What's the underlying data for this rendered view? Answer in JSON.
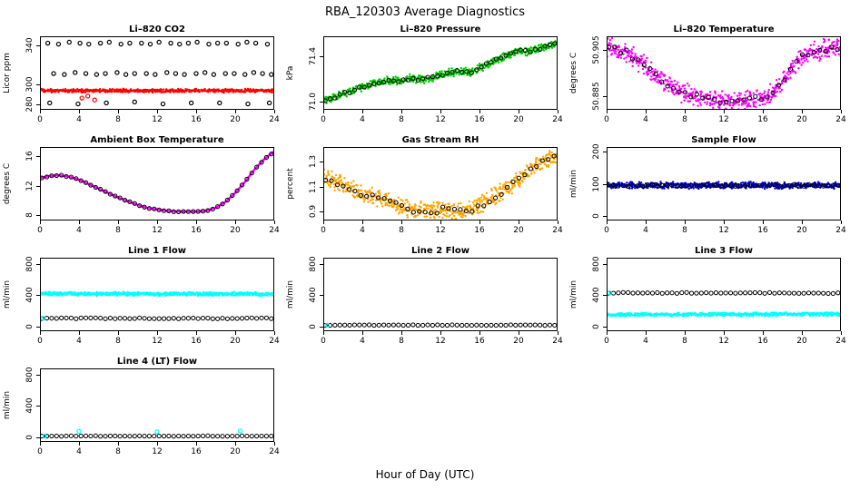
{
  "page_title": "RBA_120303  Average Diagnostics",
  "xlabel": "Hour of Day (UTC)",
  "chart_data": [
    {
      "type": "scatter",
      "title": "Li–820 CO2",
      "ylabel": "Licor ppm",
      "xlim": [
        0,
        24
      ],
      "xticks": [
        0,
        4,
        8,
        12,
        16,
        20,
        24
      ],
      "ylim": [
        274,
        349
      ],
      "yticks": [
        [
          280,
          "280"
        ],
        [
          300,
          "300"
        ],
        [
          340,
          "340"
        ]
      ],
      "series": [
        {
          "name": "co2-mean-band",
          "type": "cloud",
          "color": "#FF0000",
          "ky": [
            293.5,
            293.5
          ],
          "jitter": 1.3,
          "density": 600
        },
        {
          "name": "co2-calibration-points",
          "type": "points",
          "color": "#000000",
          "x": [
            0.8,
            1.9,
            3.0,
            4.1,
            5.0,
            6.2,
            7.1,
            8.3,
            9.2,
            10.4,
            11.3,
            12.2,
            13.4,
            14.3,
            15.2,
            16.1,
            17.3,
            18.2,
            19.1,
            20.3,
            21.2,
            22.1,
            23.3,
            1.4,
            2.5,
            3.6,
            4.7,
            5.8,
            6.7,
            7.9,
            8.8,
            9.7,
            10.9,
            11.8,
            13.0,
            13.9,
            14.8,
            16.0,
            16.9,
            17.8,
            19.0,
            19.9,
            21.0,
            21.9,
            22.8,
            23.7,
            1.0,
            3.9,
            6.8,
            9.7,
            12.6,
            15.5,
            18.4,
            21.3,
            23.5
          ],
          "y": [
            342,
            341,
            343,
            342,
            341,
            342,
            343,
            341,
            342,
            342,
            341,
            343,
            342,
            341,
            342,
            343,
            341,
            342,
            342,
            341,
            343,
            342,
            341,
            311,
            310,
            312,
            311,
            310,
            311,
            312,
            310,
            311,
            311,
            310,
            312,
            311,
            310,
            311,
            312,
            310,
            311,
            311,
            310,
            312,
            311,
            310,
            281,
            280,
            281,
            282,
            280,
            281,
            281,
            280,
            281
          ]
        },
        {
          "name": "co2-red-outliers",
          "type": "points",
          "color": "#FF0000",
          "x": [
            4.3,
            4.9,
            5.6
          ],
          "y": [
            286,
            288,
            284
          ]
        }
      ]
    },
    {
      "type": "scatter",
      "title": "Li–820 Pressure",
      "ylabel": "kPa",
      "xlim": [
        0,
        24
      ],
      "xticks": [
        0,
        4,
        8,
        12,
        16,
        20,
        24
      ],
      "ylim": [
        70.93,
        71.58
      ],
      "yticks": [
        [
          71.0,
          "71.0"
        ],
        [
          71.4,
          "71.4"
        ]
      ],
      "series": [
        {
          "name": "pressure-band",
          "type": "cloud",
          "color": "#00CD00",
          "ky": [
            71.01,
            71.04,
            71.07,
            71.1,
            71.13,
            71.16,
            71.18,
            71.19,
            71.18,
            71.21,
            71.2,
            71.21,
            71.24,
            71.26,
            71.27,
            71.26,
            71.3,
            71.34,
            71.38,
            71.42,
            71.45,
            71.44,
            71.47,
            71.49,
            71.53
          ],
          "jitter": 0.025,
          "density": 650
        },
        {
          "name": "pressure-averages",
          "type": "open",
          "color": "#000000",
          "ky": [
            71.01,
            71.04,
            71.07,
            71.1,
            71.13,
            71.16,
            71.18,
            71.19,
            71.18,
            71.21,
            71.2,
            71.21,
            71.24,
            71.26,
            71.27,
            71.26,
            71.3,
            71.34,
            71.38,
            71.42,
            71.45,
            71.44,
            71.47,
            71.49,
            71.53
          ],
          "step": 0.5,
          "jitter": 0.012
        }
      ]
    },
    {
      "type": "scatter",
      "title": "Li–820 Temperature",
      "ylabel": "degrees C",
      "xlim": [
        0,
        24
      ],
      "xticks": [
        0,
        4,
        8,
        12,
        16,
        20,
        24
      ],
      "ylim": [
        50.879,
        50.911
      ],
      "yticks": [
        [
          50.885,
          "50.885"
        ],
        [
          50.905,
          "50.905"
        ]
      ],
      "series": [
        {
          "name": "temperature-band",
          "type": "cloud",
          "color": "#FF00FF",
          "ky": [
            50.906,
            50.905,
            50.904,
            50.901,
            50.898,
            50.894,
            50.891,
            50.888,
            50.886,
            50.885,
            50.884,
            50.8835,
            50.883,
            50.883,
            50.8832,
            50.8836,
            50.884,
            50.8865,
            50.891,
            50.897,
            50.902,
            50.904,
            50.905,
            50.906,
            50.906
          ],
          "jitter": 0.003,
          "density": 650
        },
        {
          "name": "temperature-averages",
          "type": "open",
          "color": "#000000",
          "ky": [
            50.906,
            50.905,
            50.904,
            50.901,
            50.898,
            50.894,
            50.891,
            50.888,
            50.886,
            50.885,
            50.884,
            50.8835,
            50.883,
            50.883,
            50.8832,
            50.8836,
            50.884,
            50.8865,
            50.891,
            50.897,
            50.902,
            50.904,
            50.905,
            50.906,
            50.906
          ],
          "step": 0.6,
          "jitter": 0.0012
        }
      ]
    },
    {
      "type": "line",
      "title": "Ambient Box Temperature",
      "ylabel": "degrees C",
      "xlim": [
        0,
        24
      ],
      "xticks": [
        0,
        4,
        8,
        12,
        16,
        20,
        24
      ],
      "ylim": [
        7.3,
        17.2
      ],
      "yticks": [
        [
          8,
          "8"
        ],
        [
          12,
          "12"
        ],
        [
          16,
          "16"
        ]
      ],
      "series": [
        {
          "name": "box-temp-line",
          "type": "line",
          "color": "#FF00FF",
          "width": 2.5,
          "ky": [
            13.0,
            13.3,
            13.4,
            13.2,
            12.8,
            12.2,
            11.6,
            11.0,
            10.4,
            9.9,
            9.4,
            9.0,
            8.8,
            8.6,
            8.5,
            8.5,
            8.5,
            8.6,
            9.0,
            9.8,
            11.0,
            12.5,
            14.2,
            15.6,
            16.6
          ]
        },
        {
          "name": "box-temp-averages",
          "type": "open",
          "color": "#000000",
          "ky": [
            13.0,
            13.3,
            13.4,
            13.2,
            12.8,
            12.2,
            11.6,
            11.0,
            10.4,
            9.9,
            9.4,
            9.0,
            8.8,
            8.6,
            8.5,
            8.5,
            8.5,
            8.6,
            9.0,
            9.8,
            11.0,
            12.5,
            14.2,
            15.6,
            16.6
          ],
          "step": 0.5,
          "jitter": 0.05
        }
      ]
    },
    {
      "type": "scatter",
      "title": "Gas Stream RH",
      "ylabel": "percent",
      "xlim": [
        0,
        24
      ],
      "xticks": [
        0,
        4,
        8,
        12,
        16,
        20,
        24
      ],
      "ylim": [
        0.83,
        1.42
      ],
      "yticks": [
        [
          0.9,
          "0.9"
        ],
        [
          1.1,
          "1.1"
        ],
        [
          1.3,
          "1.3"
        ]
      ],
      "series": [
        {
          "name": "rh-band",
          "type": "cloud",
          "color": "#FFA500",
          "ky": [
            1.17,
            1.15,
            1.12,
            1.08,
            1.05,
            1.02,
            1.0,
            0.97,
            0.94,
            0.92,
            0.91,
            0.9,
            0.92,
            0.91,
            0.9,
            0.92,
            0.95,
            1.0,
            1.05,
            1.1,
            1.16,
            1.22,
            1.28,
            1.32,
            1.36
          ],
          "jitter": 0.05,
          "density": 650
        },
        {
          "name": "rh-averages",
          "type": "open",
          "color": "#000000",
          "ky": [
            1.17,
            1.15,
            1.12,
            1.08,
            1.05,
            1.02,
            1.0,
            0.97,
            0.94,
            0.92,
            0.91,
            0.9,
            0.92,
            0.91,
            0.9,
            0.92,
            0.95,
            1.0,
            1.05,
            1.1,
            1.16,
            1.22,
            1.28,
            1.32,
            1.36
          ],
          "step": 0.6,
          "jitter": 0.025
        }
      ]
    },
    {
      "type": "scatter",
      "title": "Sample Flow",
      "ylabel": "ml/min",
      "xlim": [
        0,
        24
      ],
      "xticks": [
        0,
        4,
        8,
        12,
        16,
        20,
        24
      ],
      "ylim": [
        -15,
        215
      ],
      "yticks": [
        [
          0,
          "0"
        ],
        [
          100,
          "100"
        ],
        [
          200,
          "200"
        ]
      ],
      "series": [
        {
          "name": "sample-flow-band",
          "type": "cloud",
          "color": "#0000CD",
          "ky": [
            95,
            95
          ],
          "jitter": 7,
          "density": 700
        },
        {
          "name": "sample-flow-averages",
          "type": "open",
          "color": "#000000",
          "ky": [
            95,
            95
          ],
          "step": 0.5,
          "jitter": 3
        }
      ]
    },
    {
      "type": "scatter",
      "title": "Line 1 Flow",
      "ylabel": "ml/min",
      "xlim": [
        0,
        24
      ],
      "xticks": [
        0,
        4,
        8,
        12,
        16,
        20,
        24
      ],
      "ylim": [
        -60,
        880
      ],
      "yticks": [
        [
          0,
          "0"
        ],
        [
          400,
          "400"
        ],
        [
          800,
          "800"
        ]
      ],
      "series": [
        {
          "name": "line1-flow-band",
          "type": "cloud",
          "color": "#00FFFF",
          "ky": [
            420,
            415
          ],
          "jitter": 18,
          "density": 700
        },
        {
          "name": "line1-flow-averages",
          "type": "open",
          "color": "#000000",
          "ky": [
            105,
            105
          ],
          "step": 0.5,
          "jitter": 6
        },
        {
          "name": "line1-first-point",
          "type": "points",
          "color": "#00FFFF",
          "x": [
            0.3
          ],
          "y": [
            105
          ]
        }
      ]
    },
    {
      "type": "scatter",
      "title": "Line 2 Flow",
      "ylabel": "ml/min",
      "xlim": [
        0,
        24
      ],
      "xticks": [
        0,
        4,
        8,
        12,
        16,
        20,
        24
      ],
      "ylim": [
        -60,
        880
      ],
      "yticks": [
        [
          0,
          "0"
        ],
        [
          400,
          "400"
        ],
        [
          800,
          "800"
        ]
      ],
      "series": [
        {
          "name": "line2-flow-averages",
          "type": "open",
          "color": "#000000",
          "ky": [
            18,
            18
          ],
          "step": 0.5,
          "jitter": 4
        },
        {
          "name": "line2-first-point",
          "type": "points",
          "color": "#00FFFF",
          "x": [
            0.4
          ],
          "y": [
            18
          ]
        }
      ]
    },
    {
      "type": "scatter",
      "title": "Line 3 Flow",
      "ylabel": "ml/min",
      "xlim": [
        0,
        24
      ],
      "xticks": [
        0,
        4,
        8,
        12,
        16,
        20,
        24
      ],
      "ylim": [
        -60,
        880
      ],
      "yticks": [
        [
          0,
          "0"
        ],
        [
          400,
          "400"
        ],
        [
          800,
          "800"
        ]
      ],
      "series": [
        {
          "name": "line3-flow-band",
          "type": "cloud",
          "color": "#00FFFF",
          "ky": [
            150,
            160
          ],
          "jitter": 16,
          "density": 700
        },
        {
          "name": "line3-flow-averages",
          "type": "open",
          "color": "#000000",
          "ky": [
            430,
            428
          ],
          "step": 0.5,
          "jitter": 6
        },
        {
          "name": "line3-first-point",
          "type": "points",
          "color": "#00FFFF",
          "x": [
            0.3
          ],
          "y": [
            430
          ]
        }
      ]
    },
    {
      "type": "scatter",
      "title": "Line 4 (LT) Flow",
      "ylabel": "ml/min",
      "xlim": [
        0,
        24
      ],
      "xticks": [
        0,
        4,
        8,
        12,
        16,
        20,
        24
      ],
      "ylim": [
        -60,
        880
      ],
      "yticks": [
        [
          0,
          "0"
        ],
        [
          400,
          "400"
        ],
        [
          800,
          "800"
        ]
      ],
      "series": [
        {
          "name": "line4-flow-averages",
          "type": "open",
          "color": "#000000",
          "ky": [
            15,
            15
          ],
          "step": 0.5,
          "jitter": 3
        },
        {
          "name": "line4-cyan-points",
          "type": "points",
          "color": "#00FFFF",
          "x": [
            0.5,
            4.0,
            12.0,
            20.5
          ],
          "y": [
            15,
            75,
            70,
            80
          ]
        }
      ]
    }
  ]
}
